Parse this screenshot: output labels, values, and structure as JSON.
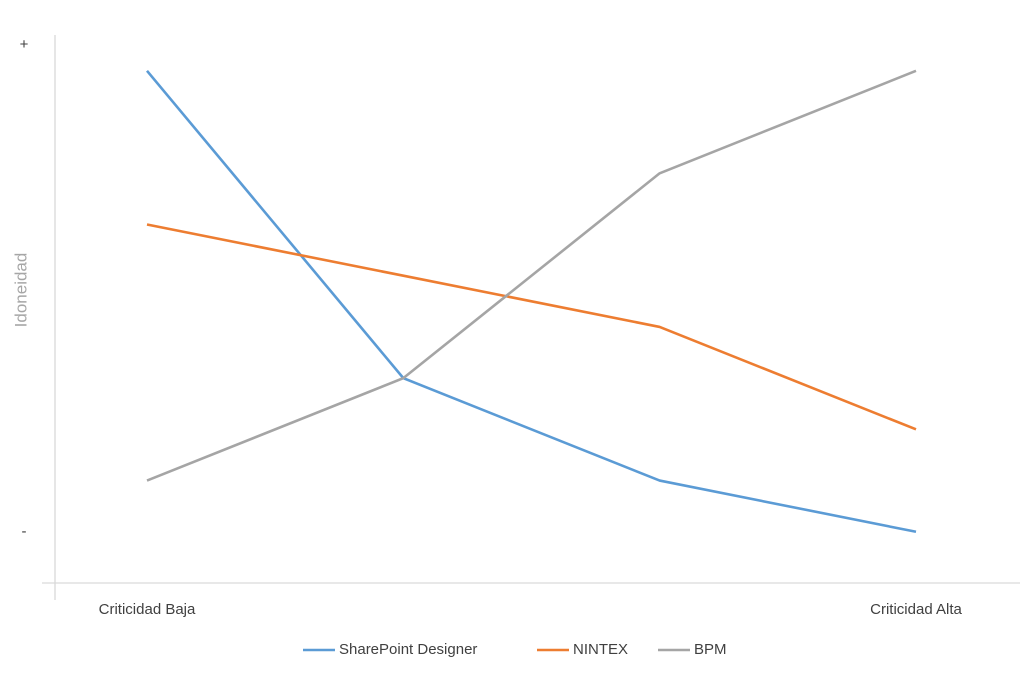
{
  "chart_data": {
    "type": "line",
    "y_label": "Idoneidad",
    "categories": [
      "Criticidad Baja",
      null,
      null,
      "Criticidad Alta"
    ],
    "series": [
      {
        "name": "SharePoint Designer",
        "color": "#5b9bd5",
        "values": [
          9,
          3,
          1,
          0
        ]
      },
      {
        "name": "NINTEX",
        "color": "#ed7d31",
        "values": [
          6,
          5,
          4,
          2
        ]
      },
      {
        "name": "BPM",
        "color": "#a5a5a5",
        "values": [
          1,
          3,
          7,
          9
        ]
      }
    ],
    "ylim": [
      -1,
      9.7
    ],
    "yticks": [
      {
        "value": 0,
        "label": "-"
      },
      {
        "value": 9.5,
        "label": "+"
      }
    ],
    "grid": false,
    "legend": "bottom"
  }
}
